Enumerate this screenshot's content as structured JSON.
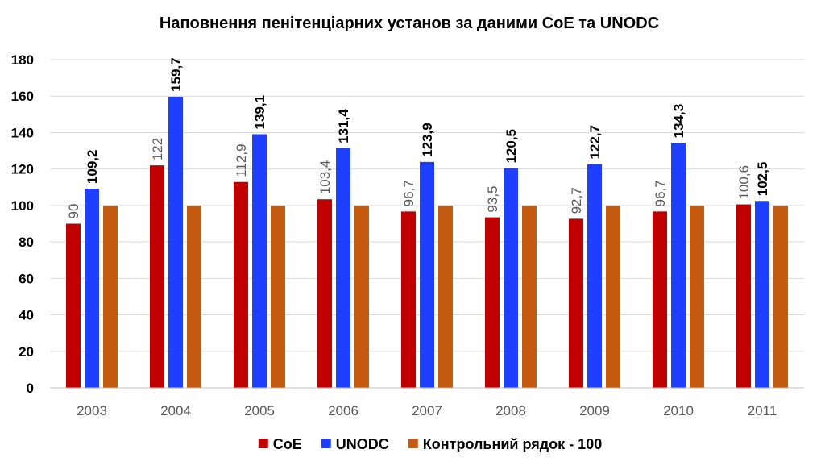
{
  "chart_data": {
    "type": "bar",
    "title": "Наповнення пенітенціарних установ за даними CoE та UNODC",
    "categories": [
      "2003",
      "2004",
      "2005",
      "2006",
      "2007",
      "2008",
      "2009",
      "2010",
      "2011"
    ],
    "series": [
      {
        "name": "CoE",
        "color": "#c00000",
        "values": [
          90,
          122,
          112.9,
          103.4,
          96.7,
          93.5,
          92.7,
          96.7,
          100.6
        ],
        "labels": [
          "90",
          "122",
          "112,9",
          "103,4",
          "96,7",
          "93,5",
          "92,7",
          "96,7",
          "100,6"
        ]
      },
      {
        "name": "UNODC",
        "color": "#1f3fff",
        "values": [
          109.2,
          159.7,
          139.1,
          131.4,
          123.9,
          120.5,
          122.7,
          134.3,
          102.5
        ],
        "labels": [
          "109,2",
          "159,7",
          "139,1",
          "131,4",
          "123,9",
          "120,5",
          "122,7",
          "134,3",
          "102,5"
        ]
      },
      {
        "name": "Контрольний рядок - 100",
        "color": "#c55a11",
        "values": [
          100,
          100,
          100,
          100,
          100,
          100,
          100,
          100,
          100
        ]
      }
    ],
    "ylim": [
      0,
      180
    ],
    "yticks": [
      "0",
      "20",
      "40",
      "60",
      "80",
      "100",
      "120",
      "140",
      "160",
      "180"
    ],
    "grid": true,
    "legend_position": "bottom"
  }
}
